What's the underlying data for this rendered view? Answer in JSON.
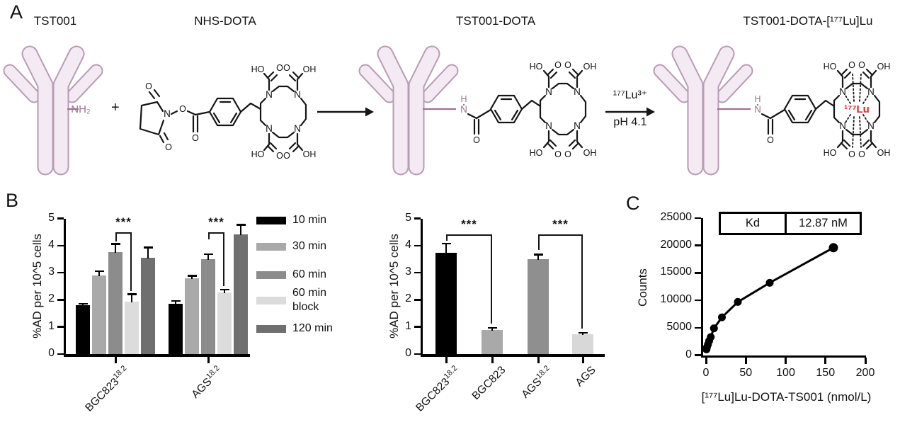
{
  "figure": {
    "background": "#ffffff",
    "panel_labels": {
      "a": "A",
      "b": "B",
      "c": "C"
    }
  },
  "panel_a": {
    "step_titles": [
      "TST001",
      "NHS-DOTA",
      "TST001-DOTA",
      "TST001-DOTA-[¹⁷⁷Lu]Lu"
    ],
    "amine_label": "NH₂",
    "plus_sign": "+",
    "arrow2_top_label": "¹⁷⁷Lu³⁺",
    "arrow2_bottom_label": "pH 4.1",
    "chelated_lu_label": "¹⁷⁷Lu",
    "atoms": {
      "ho": "HO",
      "oh": "OH",
      "o": "O",
      "n": "N",
      "h": "H"
    },
    "colors": {
      "antibody_fill": "#f3eaf3",
      "antibody_stroke": "#b99bb5",
      "amine": "#9a7590",
      "bond": "#151515",
      "lutetium_red": "#e52629"
    }
  },
  "chart_data": [
    {
      "id": "cell-uptake-time-course",
      "type": "bar",
      "title": "",
      "ylabel": "%AD per 10^5 cells",
      "ylim": [
        0,
        5
      ],
      "yticks": [
        0,
        1,
        2,
        3,
        4,
        5
      ],
      "grid": false,
      "legend_position": "right",
      "categories": [
        {
          "base": "BGC823",
          "sup": "18.2"
        },
        {
          "base": "AGS",
          "sup": "18.2"
        }
      ],
      "series": [
        {
          "name": "10 min",
          "color": "#000000",
          "values": [
            1.81,
            1.86
          ],
          "errors": [
            0.05,
            0.1
          ]
        },
        {
          "name": "30 min",
          "color": "#a9a9a9",
          "values": [
            2.9,
            2.8
          ],
          "errors": [
            0.16,
            0.08
          ]
        },
        {
          "name": "60 min",
          "color": "#8c8c8c",
          "values": [
            3.75,
            3.5
          ],
          "errors": [
            0.31,
            0.18
          ]
        },
        {
          "name": "60 min block",
          "color": "#dcdcdc",
          "values": [
            1.92,
            2.27
          ],
          "errors": [
            0.28,
            0.1
          ]
        },
        {
          "name": "120 min",
          "color": "#6f6f6f",
          "values": [
            3.55,
            4.42
          ],
          "errors": [
            0.38,
            0.35
          ]
        }
      ],
      "significance": [
        {
          "label": "***",
          "group": 0,
          "from_series": 2,
          "to_series": 3,
          "bracket_y": 4.5,
          "drop_from": 4.15,
          "drop_to": 2.32
        },
        {
          "label": "***",
          "group": 1,
          "from_series": 2,
          "to_series": 3,
          "bracket_y": 4.5,
          "drop_from": 4.22,
          "drop_to": 2.5
        }
      ]
    },
    {
      "id": "uptake-blocking",
      "type": "bar",
      "title": "",
      "ylabel": "%AD per 10^5 cells",
      "ylim": [
        0,
        5
      ],
      "yticks": [
        0,
        1,
        2,
        3,
        4,
        5
      ],
      "grid": false,
      "categories": [
        {
          "base": "BGC823",
          "sup": "18.2"
        },
        {
          "base": "BGC823",
          "sup": ""
        },
        {
          "base": "AGS",
          "sup": "18.2"
        },
        {
          "base": "AGS",
          "sup": ""
        }
      ],
      "values": [
        3.73,
        0.88,
        3.49,
        0.72
      ],
      "errors": [
        0.34,
        0.09,
        0.18,
        0.06
      ],
      "colors": [
        "#000000",
        "#a9a9a9",
        "#8f8f8f",
        "#d8d8d8"
      ],
      "significance": [
        {
          "label": "***",
          "from_bar": 0,
          "to_bar": 1,
          "bracket_y": 4.42,
          "drop_from": 4.18,
          "drop_to": 1.12
        },
        {
          "label": "***",
          "from_bar": 2,
          "to_bar": 3,
          "bracket_y": 4.42,
          "drop_from": 3.84,
          "drop_to": 0.95
        }
      ]
    },
    {
      "id": "saturation-binding",
      "type": "scatter",
      "title": "",
      "xlabel": "[¹⁷⁷Lu]Lu-DOTA-TS001 (nmol/L)",
      "ylabel": "Counts",
      "xlim": [
        0,
        200
      ],
      "ylim": [
        0,
        25000
      ],
      "xticks": [
        0,
        50,
        100,
        150,
        200
      ],
      "yticks": [
        0,
        5000,
        10000,
        15000,
        20000,
        25000
      ],
      "grid": false,
      "x": [
        0.6,
        1.25,
        2.5,
        4,
        6,
        10,
        20,
        40,
        80,
        160
      ],
      "y": [
        1050,
        1450,
        1950,
        2600,
        3300,
        4900,
        6900,
        9700,
        13200,
        19600
      ],
      "curve": "one-site saturation binding fit",
      "kd_table": {
        "label": "Kd",
        "value": "12.87 nM"
      }
    }
  ]
}
